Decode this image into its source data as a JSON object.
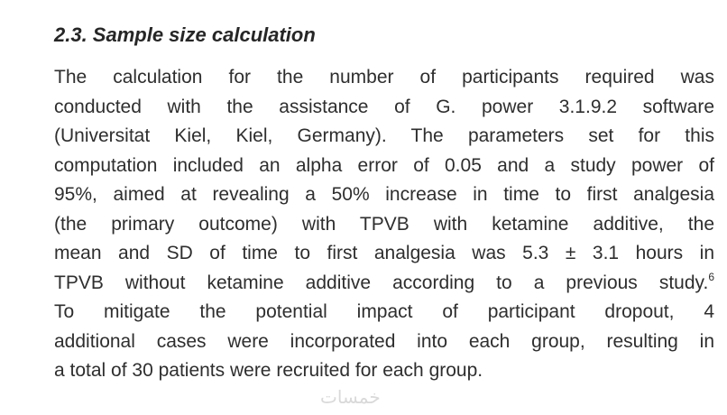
{
  "heading": "2.3. Sample size calculation",
  "paragraph": {
    "lines": [
      "The calculation for the number of participants required was",
      "conducted with the assistance of G. power 3.1.9.2 software",
      "(Universitat Kiel, Kiel, Germany). The parameters set for this",
      "computation included an alpha error of 0.05 and a study power of",
      "95%, aimed at revealing a 50% increase in time to first analgesia",
      "(the primary outcome) with TPVB with ketamine additive, the",
      "mean and SD of time to first analgesia was 5.3 ± 3.1 hours in",
      "TPVB without ketamine additive according to a previous study.",
      "To mitigate the potential impact of participant dropout, 4",
      "additional cases were incorporated into each group, resulting in",
      "a total of 30 patients were recruited for each group."
    ],
    "citation": {
      "line": 7,
      "text": "6"
    }
  },
  "watermark": "خمسات"
}
